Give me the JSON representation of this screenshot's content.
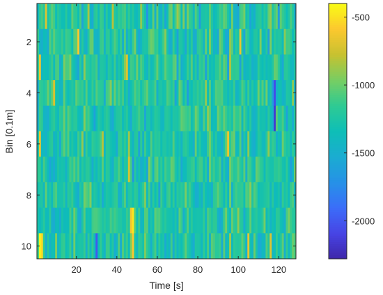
{
  "chart_data": {
    "type": "heatmap",
    "title": "",
    "xlabel": "Time [s]",
    "ylabel": "Bin [0.1m]",
    "x_range": [
      0.5,
      128.5
    ],
    "y_range": [
      0.5,
      10.5
    ],
    "n_columns": 128,
    "y_categories": [
      1,
      2,
      3,
      4,
      5,
      6,
      7,
      8,
      9,
      10
    ],
    "x_ticks": [
      20,
      40,
      60,
      80,
      100,
      120
    ],
    "x_tick_labels": [
      "20",
      "40",
      "60",
      "80",
      "100",
      "120"
    ],
    "y_ticks": [
      2,
      4,
      6,
      8,
      10
    ],
    "y_tick_labels": [
      "2",
      "4",
      "6",
      "8",
      "10"
    ],
    "colormap": "parula",
    "colorbar": {
      "range": [
        -2280,
        -400
      ],
      "ticks": [
        -500,
        -1000,
        -1500,
        -2000
      ],
      "tick_labels": [
        "-500",
        "-1000",
        "-1500",
        "-2000"
      ]
    },
    "y_direction": "reversed",
    "value_range": [
      -2280,
      -400
    ],
    "typical_value": -1250,
    "highlights": [
      {
        "row": 10,
        "x": 2,
        "value": -430
      },
      {
        "row": 10,
        "x": 3,
        "value": -520
      },
      {
        "row": 10,
        "x": 48,
        "value": -600
      },
      {
        "row": 9,
        "x": 48,
        "value": -480
      },
      {
        "row": 9,
        "x": 47,
        "value": -620
      },
      {
        "row": 1,
        "x": 5,
        "value": -700
      },
      {
        "row": 2,
        "x": 21,
        "value": -600
      },
      {
        "row": 2,
        "x": 101,
        "value": -650
      },
      {
        "row": 3,
        "x": 2,
        "value": -640
      },
      {
        "row": 3,
        "x": 45,
        "value": -700
      },
      {
        "row": 6,
        "x": 2,
        "value": -650
      },
      {
        "row": 6,
        "x": 95,
        "value": -640
      },
      {
        "row": 7,
        "x": 46,
        "value": -720
      },
      {
        "row": 10,
        "x": 105,
        "value": -660
      },
      {
        "row": 10,
        "x": 116,
        "value": -700
      },
      {
        "row": 4,
        "x": 9,
        "value": -720
      },
      {
        "row": 5,
        "x": 118,
        "value": -2150
      },
      {
        "row": 4,
        "x": 118,
        "value": -2050
      },
      {
        "row": 10,
        "x": 30,
        "value": -2000
      }
    ]
  }
}
